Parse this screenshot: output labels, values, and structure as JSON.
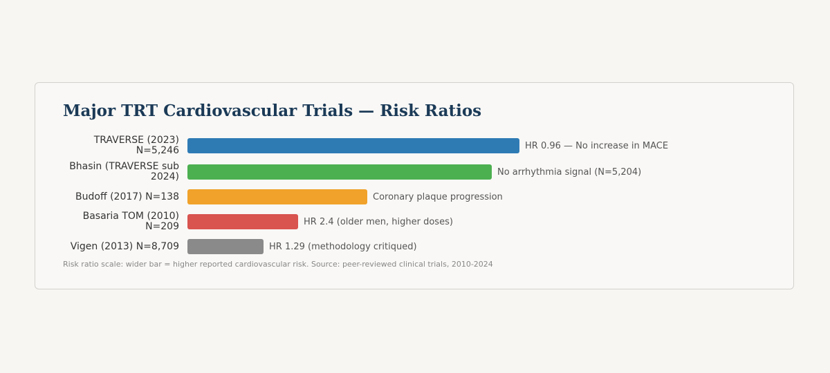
{
  "chart_data": {
    "type": "bar",
    "orientation": "horizontal",
    "title": "Major TRT Cardiovascular Trials — Risk Ratios",
    "categories": [
      "TRAVERSE (2023) N=5,246",
      "Bhasin (TRAVERSE sub 2024)",
      "Budoff (2017) N=138",
      "Basaria TOM (2010) N=209",
      "Vigen (2013) N=8,709"
    ],
    "values": [
      48,
      44,
      26,
      16,
      11
    ],
    "colors": [
      "#2e7bb4",
      "#4caf50",
      "#f0a22a",
      "#d9534f",
      "#8a8a8a"
    ],
    "annotations": [
      "HR 0.96 — No increase in MACE",
      "No arrhythmia signal (N=5,204)",
      "Coronary plaque progression",
      "HR 2.4 (older men, higher doses)",
      "HR 1.29 (methodology critiqued)"
    ],
    "footnote": "Risk ratio scale: wider bar = higher reported cardiovascular risk. Source: peer-reviewed clinical trials, 2010-2024"
  }
}
